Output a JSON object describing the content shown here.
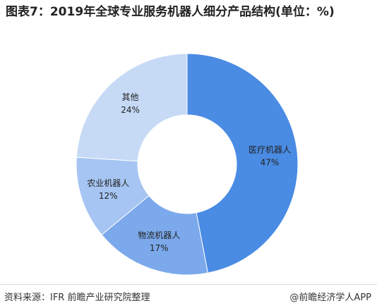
{
  "chart_data": {
    "type": "donut",
    "title": "图表7：2019年全球专业服务机器人细分产品结构(单位：%)",
    "categories": [
      "医疗机器人",
      "物流机器人",
      "农业机器人",
      "其他"
    ],
    "values": [
      47,
      17,
      12,
      24
    ],
    "value_labels": [
      "47%",
      "17%",
      "12%",
      "24%"
    ],
    "colors": [
      "#4a8be3",
      "#7ba9ec",
      "#a6c5f2",
      "#c6daf6"
    ],
    "source": "资料来源：IFR 前瞻产业研究院整理",
    "credit": "@前瞻经济学人APP"
  }
}
